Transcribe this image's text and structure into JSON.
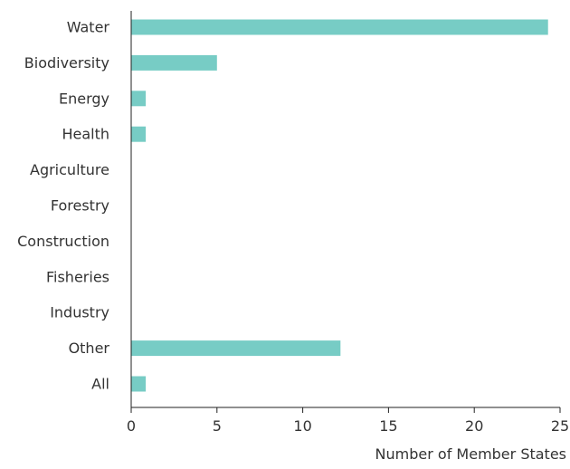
{
  "chart_data": {
    "type": "bar",
    "orientation": "horizontal",
    "categories": [
      "Water",
      "Biodiversity",
      "Energy",
      "Health",
      "Agriculture",
      "Forestry",
      "Construction",
      "Fisheries",
      "Industry",
      "Other",
      "All"
    ],
    "values": [
      24.3,
      5,
      0.85,
      0.85,
      0,
      0,
      0,
      0,
      0,
      12.2,
      0.85
    ],
    "xlabel": "Number of Member States",
    "ylabel": "",
    "xlim": [
      0,
      25
    ],
    "xticks": [
      0,
      5,
      10,
      15,
      20,
      25
    ],
    "grid": false,
    "bar_color": "#77ccc5"
  }
}
